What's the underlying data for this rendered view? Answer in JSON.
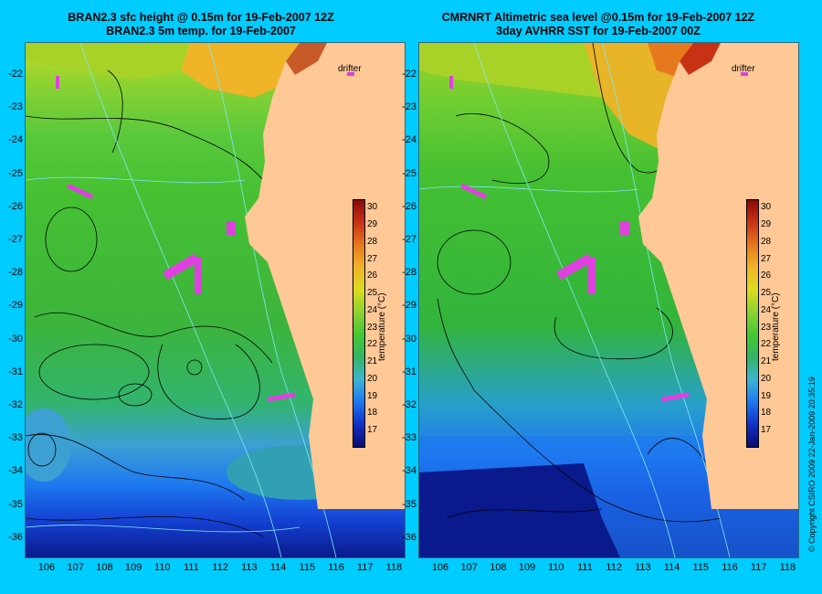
{
  "left_panel": {
    "title_line1": "BRAN2.3 sfc height @ 0.15m for 19-Feb-2007 12Z",
    "title_line2": "BRAN2.3 5m temp. for 19-Feb-2007",
    "drifter_label": "drifter"
  },
  "right_panel": {
    "title_line1": "CMRNRT Altimetric sea level  @0.15m  for 19-Feb-2007 12Z",
    "title_line2": "3day AVHRR SST for 19-Feb-2007 00Z",
    "drifter_label": "drifter"
  },
  "axes": {
    "lat_ticks": [
      "-22",
      "-23",
      "-24",
      "-25",
      "-26",
      "-27",
      "-28",
      "-29",
      "-30",
      "-31",
      "-32",
      "-33",
      "-34",
      "-35",
      "-36"
    ],
    "lon_ticks": [
      "106",
      "107",
      "108",
      "109",
      "110",
      "111",
      "112",
      "113",
      "114",
      "115",
      "116",
      "117",
      "118"
    ]
  },
  "colorbar": {
    "title": "temperature (°C)",
    "ticks": [
      "30",
      "29",
      "28",
      "27",
      "26",
      "25",
      "24",
      "23",
      "22",
      "21",
      "20",
      "19",
      "18",
      "17"
    ],
    "range": [
      16,
      30.5
    ],
    "colors": [
      "#0a0a6e",
      "#1030c8",
      "#1e78f0",
      "#3cb4d2",
      "#32b464",
      "#46c832",
      "#8cd232",
      "#dcdc1e",
      "#f0b428",
      "#e6781e",
      "#c83214",
      "#8c0a0a"
    ]
  },
  "colors": {
    "background": "#00ccff",
    "land": "#ffc896",
    "drifter": "#e040e0"
  },
  "copyright": "© Copyright CSIRO 2009   22-Jan-2009 20:35:19"
}
